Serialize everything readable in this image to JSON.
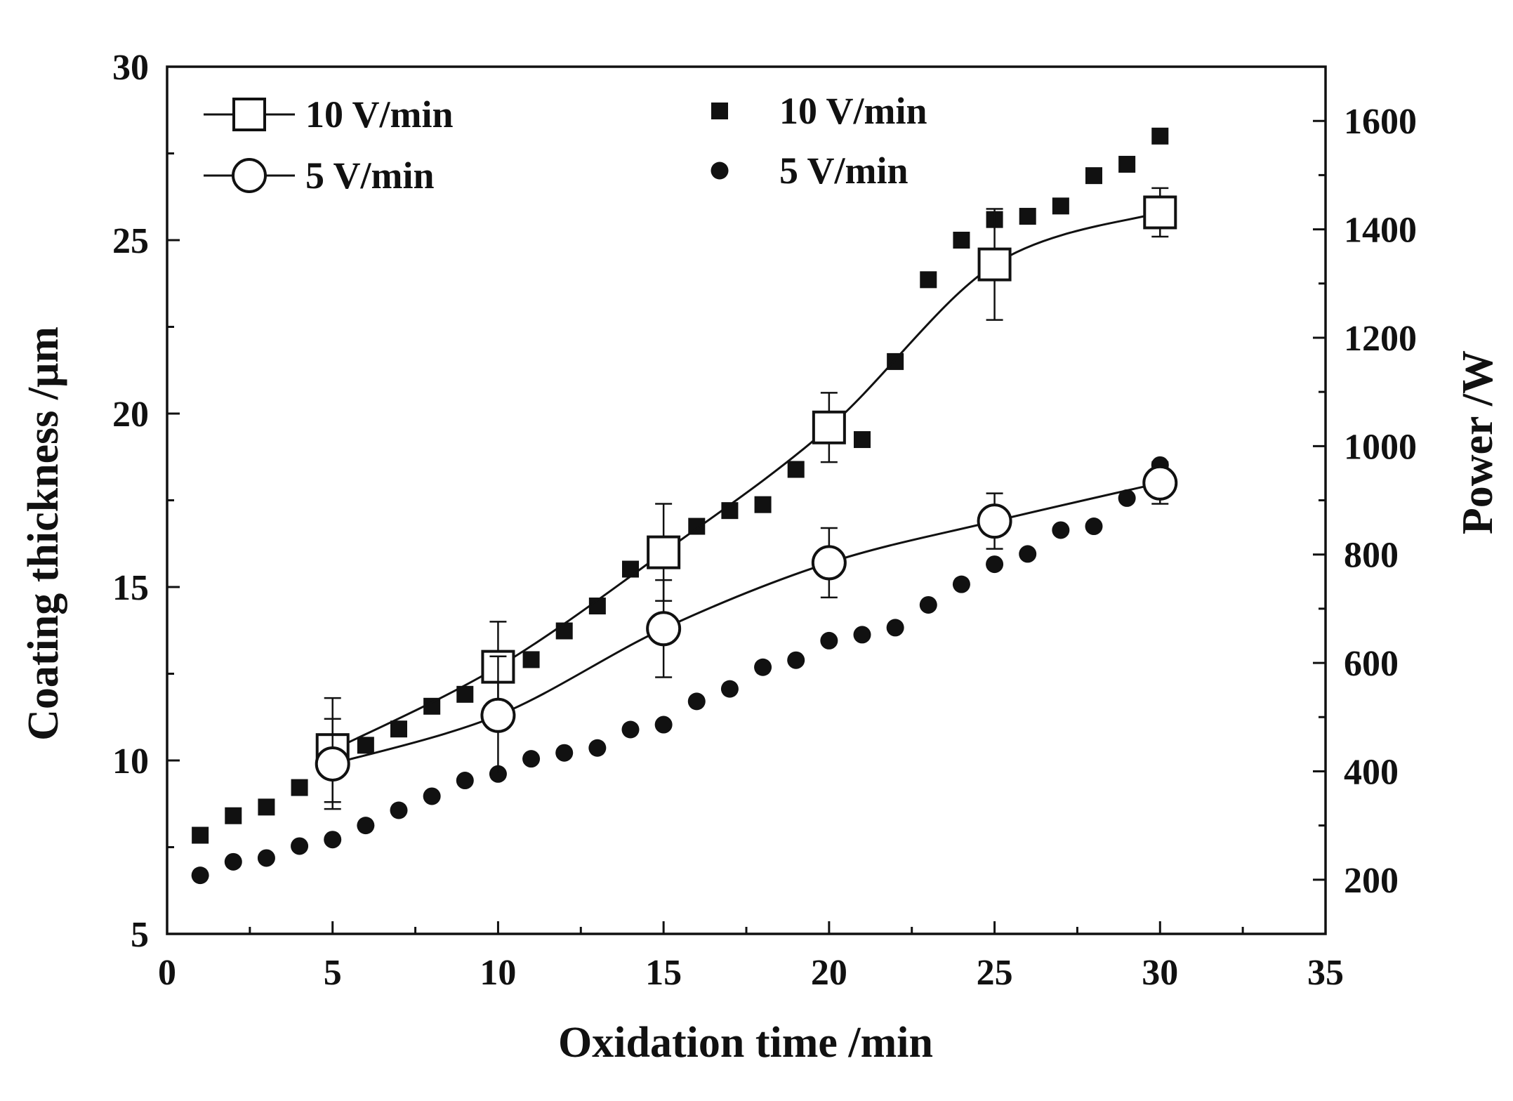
{
  "chart_data": {
    "type": "scatter",
    "title": "",
    "xlabel": "Oxidation time /min",
    "ylabel_left": "Coating thickness /μm",
    "ylabel_right": "Power /W",
    "xlim": [
      0,
      35
    ],
    "ylim_left": [
      5,
      30
    ],
    "ylim_right": [
      100,
      1700
    ],
    "x_ticks": [
      0,
      5,
      10,
      15,
      20,
      25,
      30,
      35
    ],
    "x_tick_labels": [
      "0",
      "5",
      "10",
      "15",
      "20",
      "25",
      "30",
      "35"
    ],
    "y_left_ticks": [
      5,
      10,
      15,
      20,
      25,
      30
    ],
    "y_left_tick_labels": [
      "5",
      "10",
      "15",
      "20",
      "25",
      "30"
    ],
    "y_right_ticks": [
      200,
      400,
      600,
      800,
      1000,
      1200,
      1400,
      1600
    ],
    "y_right_tick_labels": [
      "200",
      "400",
      "600",
      "800",
      "1000",
      "1200",
      "1400",
      "1600"
    ],
    "legend_placement": "top",
    "series": [
      {
        "name": "10 V/min",
        "legend_label": "10 V/min",
        "quantity": "Coating thickness",
        "axis": "left",
        "marker": "open-square",
        "style": "line+markers+errorbars",
        "x": [
          5,
          10,
          15,
          20,
          25,
          30
        ],
        "y": [
          10.3,
          12.7,
          16.0,
          19.6,
          24.3,
          25.8
        ],
        "err": [
          1.5,
          1.3,
          1.4,
          1.0,
          1.6,
          0.7
        ]
      },
      {
        "name": "5 V/min",
        "legend_label": "5 V/min",
        "quantity": "Coating thickness",
        "axis": "left",
        "marker": "open-circle",
        "style": "line+markers+errorbars",
        "x": [
          5,
          10,
          15,
          20,
          25,
          30
        ],
        "y": [
          9.9,
          11.3,
          13.8,
          15.7,
          16.9,
          18.0
        ],
        "err": [
          1.3,
          1.7,
          1.4,
          1.0,
          0.8,
          0.6
        ]
      },
      {
        "name": "10 V/min",
        "legend_label": "10 V/min",
        "quantity": "Power",
        "axis": "right",
        "marker": "filled-square",
        "style": "markers",
        "x": [
          1,
          2,
          3,
          4,
          5,
          6,
          7,
          8,
          9,
          10,
          11,
          12,
          13,
          14,
          15,
          16,
          17,
          18,
          19,
          20,
          21,
          22,
          23,
          24,
          25,
          26,
          27,
          28,
          29,
          30
        ],
        "y": [
          282,
          318,
          334,
          370,
          412,
          448,
          478,
          520,
          542,
          596,
          606,
          659,
          705,
          773,
          800,
          852,
          881,
          892,
          957,
          1022,
          1012,
          1156,
          1307,
          1380,
          1418,
          1424,
          1443,
          1499,
          1520,
          1572
        ]
      },
      {
        "name": "5 V/min",
        "legend_label": "5 V/min",
        "quantity": "Power",
        "axis": "right",
        "marker": "filled-circle",
        "style": "markers",
        "x": [
          1,
          2,
          3,
          4,
          5,
          6,
          7,
          8,
          9,
          10,
          11,
          12,
          13,
          14,
          15,
          16,
          17,
          18,
          19,
          20,
          21,
          22,
          23,
          24,
          25,
          26,
          27,
          28,
          29,
          30
        ],
        "y": [
          208,
          233,
          240,
          262,
          274,
          300,
          328,
          354,
          383,
          395,
          423,
          434,
          443,
          477,
          486,
          529,
          552,
          592,
          605,
          641,
          652,
          665,
          707,
          745,
          782,
          801,
          845,
          852,
          904,
          965
        ]
      }
    ]
  }
}
